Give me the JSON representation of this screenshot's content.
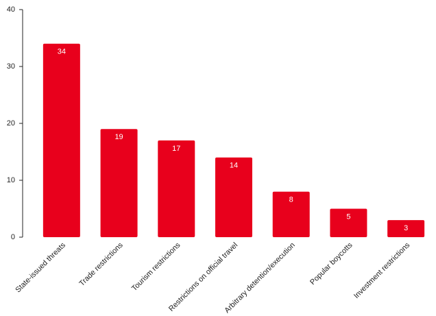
{
  "chart_data": {
    "type": "bar",
    "categories": [
      "State-issued threats",
      "Trade restrictions",
      "Tourism restrictions",
      "Restrictions on official travel",
      "Arbitrary detention/execution",
      "Popular boycotts",
      "Investment restrictions"
    ],
    "values": [
      34,
      19,
      17,
      14,
      8,
      5,
      3
    ],
    "color": "#e8001c",
    "ylim": [
      0,
      40
    ],
    "yticks": [
      0,
      10,
      20,
      30,
      40
    ],
    "grid": false
  }
}
